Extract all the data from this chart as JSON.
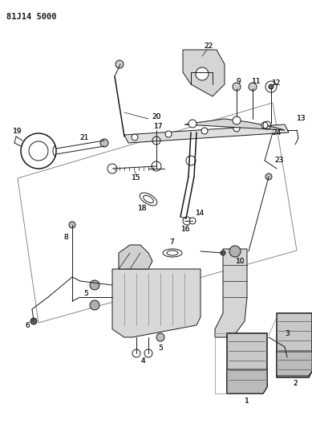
{
  "title": "81J14 5000",
  "bg": "#ffffff",
  "lc": "#1a1a1a",
  "fig_w": 3.89,
  "fig_h": 5.33,
  "dpi": 100
}
